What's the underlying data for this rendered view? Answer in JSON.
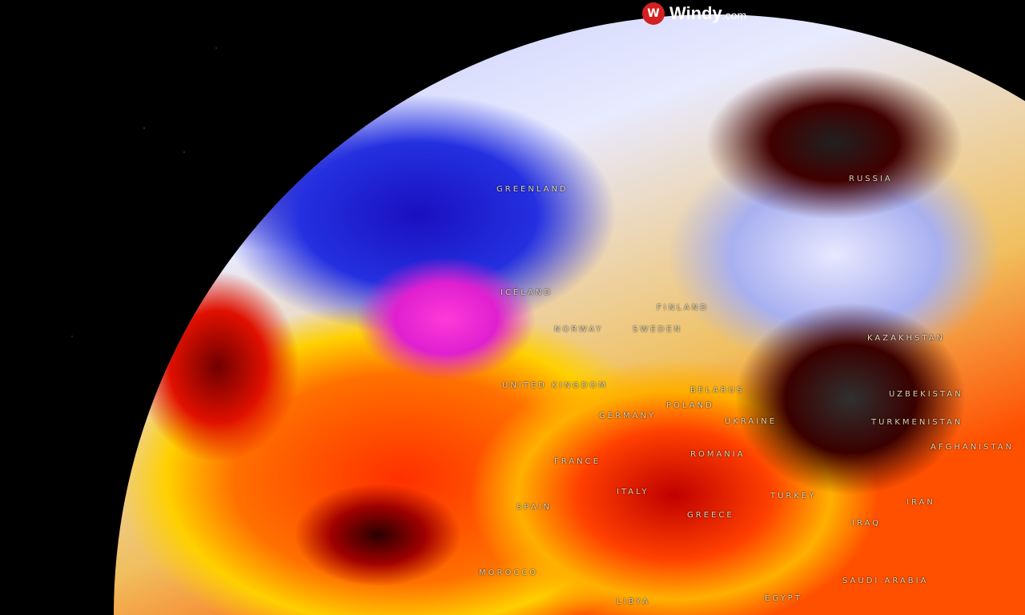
{
  "brand": {
    "name": "Windy",
    "suffix": ".com",
    "color": "#d42020"
  },
  "map": {
    "layer_colors": {
      "cold": "#2430e0",
      "extreme_low": "#e020d0",
      "hot": "#ff3000",
      "extreme_hot": "#303030"
    },
    "labels": [
      "GREENLAND",
      "ICELAND",
      "NORWAY",
      "SWEDEN",
      "FINLAND",
      "RUSSIA",
      "UNITED KINGDOM",
      "GERMANY",
      "POLAND",
      "BELARUS",
      "UKRAINE",
      "KAZAKHSTAN",
      "UZBEKISTAN",
      "TURKMENISTAN",
      "AFGHANISTAN",
      "ROMANIA",
      "FRANCE",
      "ITALY",
      "SPAIN",
      "GREECE",
      "TURKEY",
      "IRAN",
      "IRAQ",
      "MOROCCO",
      "SAUDI ARABIA",
      "EGYPT",
      "LIBYA"
    ]
  }
}
